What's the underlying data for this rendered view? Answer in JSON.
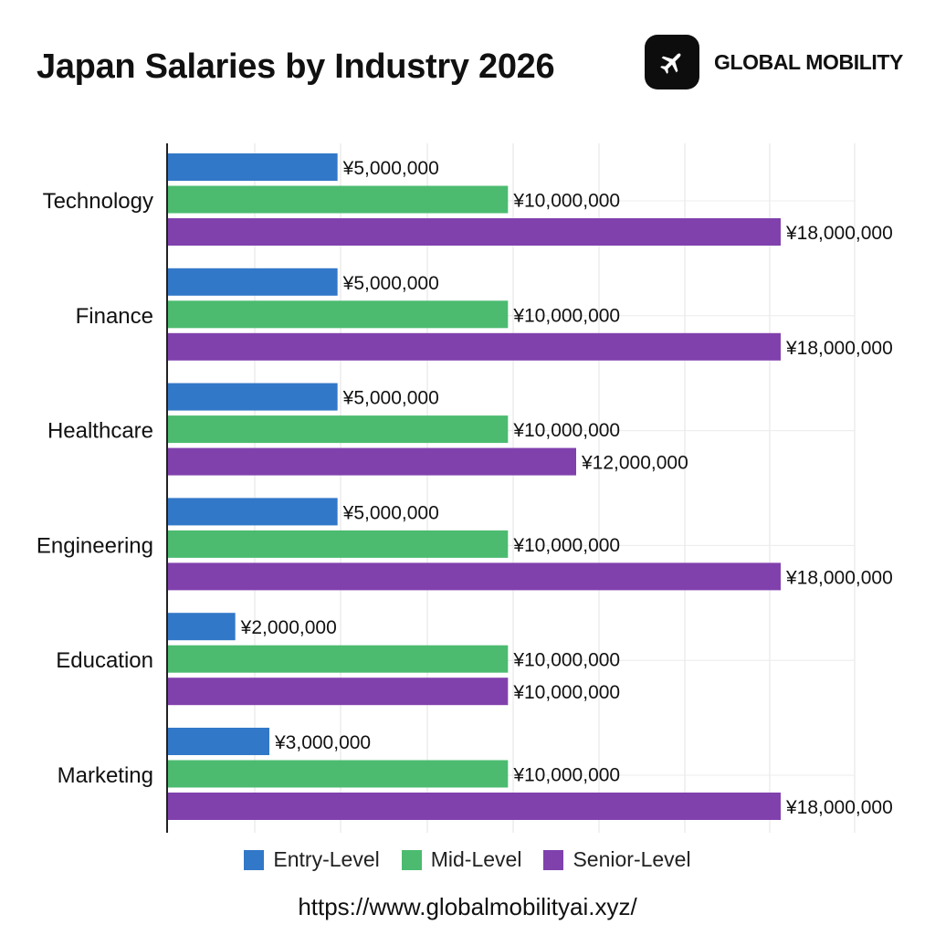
{
  "header": {
    "title": "Japan Salaries by Industry 2026",
    "brand": "GLOBAL MOBILITY",
    "brand_icon": "airplane-icon"
  },
  "footer": {
    "url": "https://www.globalmobilityai.xyz/"
  },
  "chart_data": {
    "type": "bar",
    "orientation": "horizontal",
    "title": "Japan Salaries by Industry 2026",
    "categories": [
      "Technology",
      "Finance",
      "Healthcare",
      "Engineering",
      "Education",
      "Marketing"
    ],
    "series": [
      {
        "name": "Entry-Level",
        "color": "#3278c8",
        "values": [
          5000000,
          5000000,
          5000000,
          5000000,
          2000000,
          3000000
        ],
        "labels": [
          "¥5,000,000",
          "¥5,000,000",
          "¥5,000,000",
          "¥5,000,000",
          "¥2,000,000",
          "¥3,000,000"
        ]
      },
      {
        "name": "Mid-Level",
        "color": "#4cbb70",
        "values": [
          10000000,
          10000000,
          10000000,
          10000000,
          10000000,
          10000000
        ],
        "labels": [
          "¥10,000,000",
          "¥10,000,000",
          "¥10,000,000",
          "¥10,000,000",
          "¥10,000,000",
          "¥10,000,000"
        ]
      },
      {
        "name": "Senior-Level",
        "color": "#8041ad",
        "values": [
          18000000,
          18000000,
          12000000,
          18000000,
          10000000,
          18000000
        ],
        "labels": [
          "¥18,000,000",
          "¥18,000,000",
          "¥12,000,000",
          "¥18,000,000",
          "¥10,000,000",
          "¥18,000,000"
        ]
      }
    ],
    "grid": true,
    "legend": "bottom-center"
  }
}
